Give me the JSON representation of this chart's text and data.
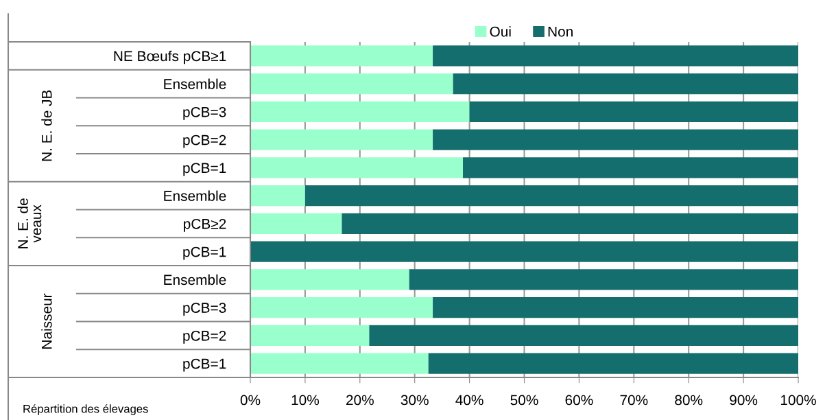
{
  "chart_data": {
    "type": "bar",
    "orientation": "horizontal",
    "stacked": true,
    "categories": [
      "NE Bœufs pCB≥1",
      "Ensemble",
      "pCB=3",
      "pCB=2",
      "pCB=1",
      "Ensemble",
      "pCB≥2",
      "pCB=1",
      "Ensemble",
      "pCB=3",
      "pCB=2",
      "pCB=1"
    ],
    "series": [
      {
        "name": "Oui",
        "color": "#99ffcc",
        "values": [
          33.3,
          37.0,
          40.0,
          33.3,
          38.8,
          10.0,
          16.7,
          0,
          29.0,
          33.3,
          21.7,
          32.5
        ]
      },
      {
        "name": "Non",
        "color": "#156e6e",
        "values": [
          66.7,
          63.0,
          60.0,
          66.7,
          61.2,
          90.0,
          83.3,
          100,
          71.0,
          66.7,
          78.3,
          67.5
        ]
      }
    ],
    "xlim": [
      0,
      100
    ],
    "xticks": [
      {
        "value": 0,
        "label": "0%"
      },
      {
        "value": 10,
        "label": "10%"
      },
      {
        "value": 20,
        "label": "20%"
      },
      {
        "value": 30,
        "label": "30%"
      },
      {
        "value": 40,
        "label": "40%"
      },
      {
        "value": 50,
        "label": "50%"
      },
      {
        "value": 60,
        "label": "60%"
      },
      {
        "value": 70,
        "label": "70%"
      },
      {
        "value": 80,
        "label": "80%"
      },
      {
        "value": 90,
        "label": "90%"
      },
      {
        "value": 100,
        "label": "100%"
      }
    ],
    "grid": "x",
    "legend": "top",
    "annotations": [
      "N. E. de JB",
      "N. E. de\nveaux",
      "Naisseur",
      "Répartition des élevages"
    ]
  }
}
